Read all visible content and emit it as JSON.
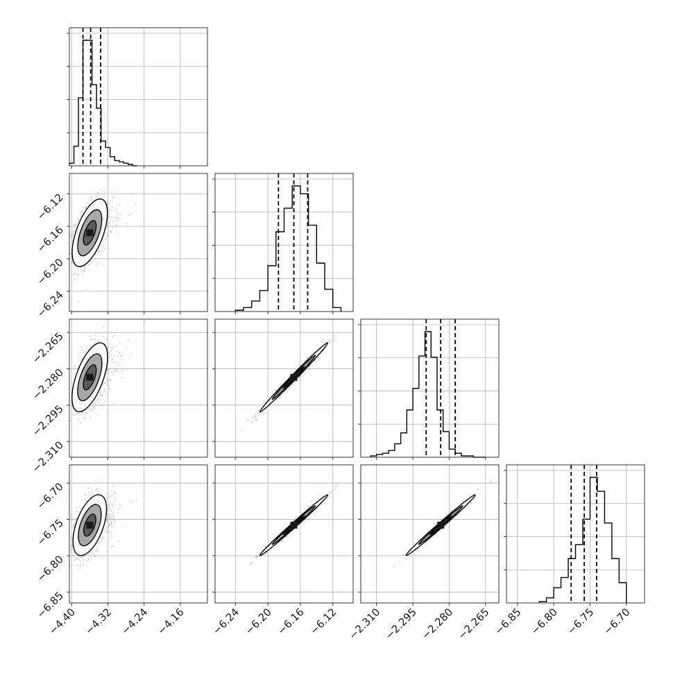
{
  "chart_data": {
    "type": "scatter",
    "layout": "corner-plot",
    "parameters": 4,
    "title": "",
    "grid": true,
    "colors": {
      "axes": "#333333",
      "grid": "#b0b0b0",
      "line": "#000000",
      "points": "#9a9a9a",
      "contour_dark": "#1a1a1a",
      "contour_mid": "#5a5a5a",
      "contour_light": "#a8a8a8"
    },
    "params": [
      {
        "index": 0,
        "range": [
          -4.405,
          -4.1
        ],
        "ticks": [
          "-4.40",
          "-4.32",
          "-4.24",
          "-4.16"
        ],
        "tick_values": [
          -4.4,
          -4.32,
          -4.24,
          -4.16
        ],
        "mean": -4.36,
        "sd": 0.016,
        "quantiles": [
          -4.375,
          -4.358,
          -4.336
        ]
      },
      {
        "index": 1,
        "range": [
          -6.265,
          -6.095
        ],
        "ticks": [
          "-6.24",
          "-6.20",
          "-6.16",
          "-6.12"
        ],
        "tick_values": [
          -6.24,
          -6.2,
          -6.16,
          -6.12
        ],
        "mean": -6.168,
        "sd": 0.019,
        "quantiles": [
          -6.187,
          -6.168,
          -6.151
        ]
      },
      {
        "index": 2,
        "range": [
          -2.3165,
          -2.2595
        ],
        "ticks": [
          "-2.310",
          "-2.295",
          "-2.280",
          "-2.265"
        ],
        "tick_values": [
          -2.31,
          -2.295,
          -2.28,
          -2.265
        ],
        "mean": -2.2835,
        "sd": 0.0065,
        "quantiles": [
          -2.2895,
          -2.2835,
          -2.2775
        ]
      },
      {
        "index": 3,
        "range": [
          -6.865,
          -6.675
        ],
        "ticks": [
          "-6.85",
          "-6.80",
          "-6.75",
          "-6.70"
        ],
        "tick_values": [
          -6.85,
          -6.8,
          -6.75,
          -6.7
        ],
        "mean": -6.758,
        "sd": 0.019,
        "quantiles": [
          -6.776,
          -6.758,
          -6.741
        ]
      }
    ],
    "histograms": [
      {
        "param": 0,
        "bin_edges": [
          -4.405,
          -4.395,
          -4.385,
          -4.375,
          -4.365,
          -4.355,
          -4.345,
          -4.335,
          -4.325,
          -4.315,
          -4.305,
          -4.295,
          -4.285,
          -4.275,
          -4.265,
          -4.255
        ],
        "counts": [
          2,
          15,
          52,
          96,
          96,
          62,
          44,
          19,
          14,
          7,
          4,
          3,
          2,
          1,
          0
        ]
      },
      {
        "param": 1,
        "bin_edges": [
          -6.24,
          -6.23,
          -6.22,
          -6.21,
          -6.2,
          -6.19,
          -6.18,
          -6.17,
          -6.16,
          -6.15,
          -6.14,
          -6.13,
          -6.12,
          -6.11
        ],
        "counts": [
          1,
          3,
          8,
          16,
          35,
          61,
          79,
          96,
          90,
          66,
          37,
          17,
          3
        ]
      },
      {
        "param": 2,
        "bin_edges": [
          -2.3125,
          -2.31,
          -2.3075,
          -2.305,
          -2.3025,
          -2.3,
          -2.2975,
          -2.295,
          -2.2925,
          -2.29,
          -2.2875,
          -2.285,
          -2.2825,
          -2.28,
          -2.2775,
          -2.275,
          -2.2725,
          -2.27,
          -2.2675,
          -2.265
        ],
        "counts": [
          1,
          2,
          3,
          5,
          10,
          18,
          35,
          51,
          75,
          93,
          74,
          35,
          19,
          6,
          3,
          1,
          1,
          0,
          0
        ]
      },
      {
        "param": 3,
        "bin_edges": [
          -6.82,
          -6.81,
          -6.8,
          -6.79,
          -6.78,
          -6.77,
          -6.76,
          -6.75,
          -6.74,
          -6.73,
          -6.72,
          -6.71,
          -6.7
        ],
        "counts": [
          1,
          4,
          12,
          20,
          35,
          46,
          66,
          99,
          88,
          63,
          35,
          16
        ]
      }
    ],
    "correlations": [
      {
        "pair": [
          0,
          1
        ],
        "rho": 0.45
      },
      {
        "pair": [
          0,
          2
        ],
        "rho": 0.45
      },
      {
        "pair": [
          0,
          3
        ],
        "rho": 0.45
      },
      {
        "pair": [
          1,
          2
        ],
        "rho": 0.99
      },
      {
        "pair": [
          1,
          3
        ],
        "rho": 0.99
      },
      {
        "pair": [
          2,
          3
        ],
        "rho": 0.99
      }
    ]
  }
}
